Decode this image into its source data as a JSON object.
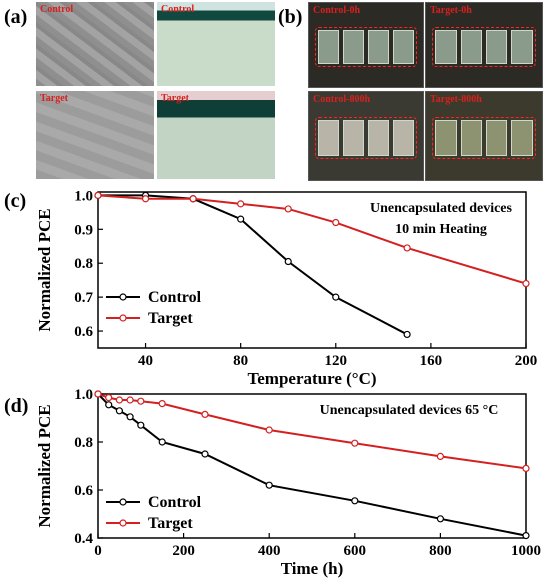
{
  "panel_labels": {
    "a": "(a)",
    "b": "(b)",
    "c": "(c)",
    "d": "(d)"
  },
  "image_panel_a": {
    "tiles": [
      {
        "label": "Control",
        "kind": "sem"
      },
      {
        "label": "Control",
        "kind": "xsec"
      },
      {
        "label": "Target",
        "kind": "sem"
      },
      {
        "label": "Target",
        "kind": "xsec"
      }
    ]
  },
  "image_panel_b": {
    "tiles": [
      {
        "label": "Control-0h"
      },
      {
        "label": "Target-0h"
      },
      {
        "label": "Control-800h"
      },
      {
        "label": "Target-800h"
      }
    ]
  },
  "colors": {
    "control": "#000000",
    "target": "#d42020",
    "panel_label": "#000000",
    "tile_label": "#d8201e"
  },
  "chart_data": [
    {
      "type": "line",
      "panel": "c",
      "annotation_lines": [
        "Unencapsulated devices",
        "10 min Heating"
      ],
      "xlabel": "Temperature (°C)",
      "ylabel": "Normalized PCE",
      "xlim": [
        20,
        200
      ],
      "ylim": [
        0.55,
        1.01
      ],
      "xticks": [
        40,
        80,
        120,
        160,
        200
      ],
      "yticks": [
        0.6,
        0.7,
        0.8,
        0.9,
        1.0
      ],
      "ytick_labels": [
        "0.6",
        "0.7",
        "0.8",
        "0.9",
        "1.0"
      ],
      "legend_position": "bottom-left",
      "series": [
        {
          "name": "Control",
          "color": "#000000",
          "x": [
            20,
            40,
            60,
            80,
            100,
            120,
            150
          ],
          "y": [
            1.0,
            1.0,
            0.99,
            0.93,
            0.805,
            0.7,
            0.59
          ]
        },
        {
          "name": "Target",
          "color": "#d42020",
          "x": [
            20,
            40,
            60,
            80,
            100,
            120,
            150,
            200
          ],
          "y": [
            1.0,
            0.99,
            0.99,
            0.975,
            0.96,
            0.92,
            0.845,
            0.74
          ]
        }
      ]
    },
    {
      "type": "line",
      "panel": "d",
      "annotation_lines": [
        "Unencapsulated devices 65 °C"
      ],
      "xlabel": "Time (h)",
      "ylabel": "Normalized PCE",
      "xlim": [
        0,
        1000
      ],
      "ylim": [
        0.4,
        1.0
      ],
      "xticks": [
        0,
        200,
        400,
        600,
        800,
        1000
      ],
      "yticks": [
        0.4,
        0.6,
        0.8,
        1.0
      ],
      "ytick_labels": [
        "0.4",
        "0.6",
        "0.8",
        "1.0"
      ],
      "legend_position": "bottom-left",
      "series": [
        {
          "name": "Control",
          "color": "#000000",
          "x": [
            0,
            25,
            50,
            75,
            100,
            150,
            250,
            400,
            600,
            800,
            1000
          ],
          "y": [
            1.0,
            0.955,
            0.93,
            0.905,
            0.87,
            0.8,
            0.75,
            0.62,
            0.555,
            0.48,
            0.41
          ]
        },
        {
          "name": "Target",
          "color": "#d42020",
          "x": [
            0,
            25,
            50,
            75,
            100,
            150,
            250,
            400,
            600,
            800,
            1000
          ],
          "y": [
            1.0,
            0.985,
            0.975,
            0.975,
            0.97,
            0.96,
            0.915,
            0.85,
            0.795,
            0.74,
            0.69
          ]
        }
      ]
    }
  ]
}
